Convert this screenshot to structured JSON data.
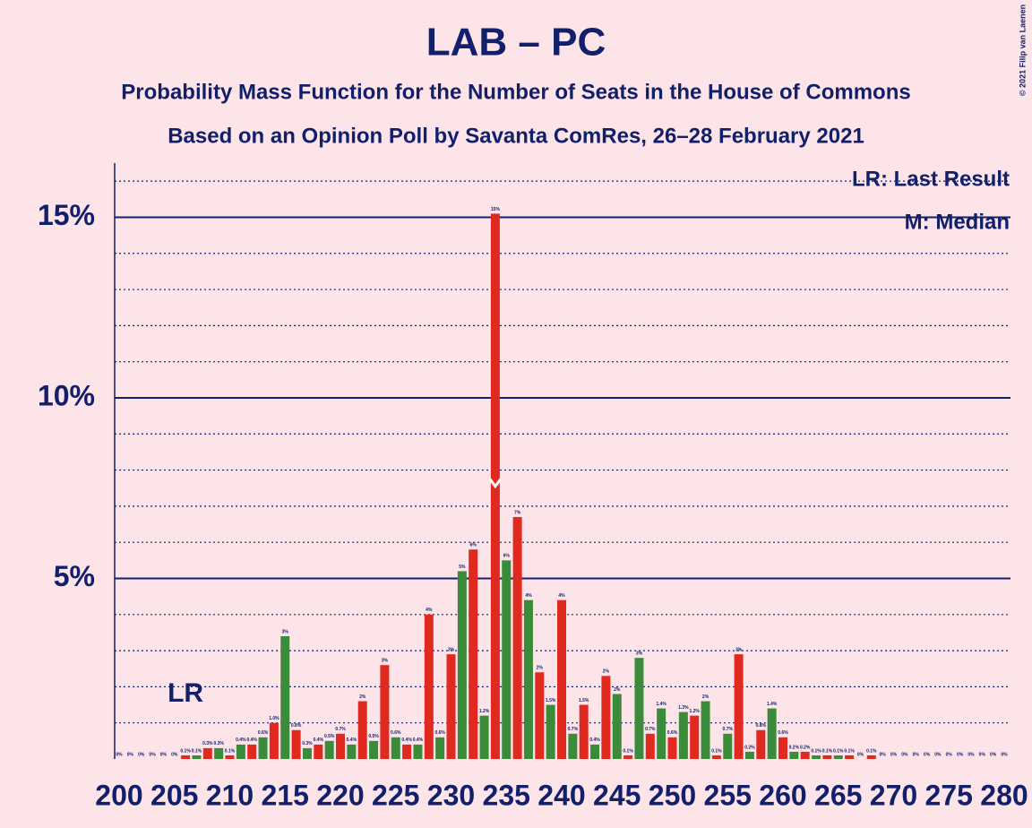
{
  "chart_data": {
    "type": "bar",
    "title": "LAB – PC",
    "subtitle": "Probability Mass Function for the Number of Seats in the House of Commons",
    "subtitle2": "Based on an Opinion Poll by Savanta ComRes, 26–28 February 2021",
    "copyright": "© 2021 Filip van Laenen",
    "legend": [
      "LR: Last Result",
      "M: Median"
    ],
    "last_result_label": "LR",
    "last_result": 206,
    "median": 234,
    "categories": [
      "200",
      null,
      null,
      null,
      null,
      "205",
      null,
      null,
      null,
      null,
      "210",
      null,
      null,
      null,
      null,
      "215",
      null,
      null,
      null,
      null,
      "220",
      null,
      null,
      null,
      null,
      "225",
      null,
      null,
      null,
      null,
      "230",
      null,
      null,
      null,
      null,
      "235",
      null,
      null,
      null,
      null,
      "240",
      null,
      null,
      null,
      null,
      "245",
      null,
      null,
      null,
      null,
      "250",
      null,
      null,
      null,
      null,
      "255",
      null,
      null,
      null,
      null,
      "260",
      null,
      null,
      null,
      null,
      "265",
      null,
      null,
      null,
      null,
      "270",
      null,
      null,
      null,
      null,
      "275",
      null,
      null,
      null,
      null,
      "280"
    ],
    "x": [
      200,
      201,
      202,
      203,
      204,
      205,
      206,
      207,
      208,
      209,
      210,
      211,
      212,
      213,
      214,
      215,
      216,
      217,
      218,
      219,
      220,
      221,
      222,
      223,
      224,
      225,
      226,
      227,
      228,
      229,
      230,
      231,
      232,
      233,
      234,
      235,
      236,
      237,
      238,
      239,
      240,
      241,
      242,
      243,
      244,
      245,
      246,
      247,
      248,
      249,
      250,
      251,
      252,
      253,
      254,
      255,
      256,
      257,
      258,
      259,
      260,
      261,
      262,
      263,
      264,
      265,
      266,
      267,
      268,
      269,
      270,
      271,
      272,
      273,
      274,
      275,
      276,
      277,
      278,
      279,
      280
    ],
    "values": [
      0,
      0,
      0,
      0,
      0,
      0,
      0.1,
      0.1,
      0.3,
      0.3,
      0.1,
      0.4,
      0.4,
      0.6,
      1.0,
      3.4,
      0.8,
      0.3,
      0.4,
      0.5,
      0.7,
      0.4,
      1.6,
      0.5,
      2.6,
      0.6,
      0.4,
      0.4,
      4.0,
      0.6,
      2.9,
      5.2,
      5.8,
      1.2,
      15.1,
      5.5,
      6.7,
      4.4,
      2.4,
      1.5,
      4.4,
      0.7,
      1.5,
      0.4,
      2.3,
      1.8,
      0.1,
      2.8,
      0.7,
      1.4,
      0.6,
      1.3,
      1.2,
      1.6,
      0.1,
      0.7,
      2.9,
      0.2,
      0.8,
      1.4,
      0.6,
      0.2,
      0.2,
      0.1,
      0.1,
      0.1,
      0.1,
      0,
      0.1,
      0,
      0,
      0,
      0,
      0,
      0,
      0,
      0,
      0,
      0,
      0,
      0
    ],
    "value_labels": [
      "0%",
      "0%",
      "0%",
      "0%",
      "0%",
      "0%",
      "0.1%",
      "0.1%",
      "0.3%",
      "0.3%",
      "0.1%",
      "0.4%",
      "0.4%",
      "0.6%",
      "1.0%",
      "3%",
      "0.8%",
      "0.3%",
      "0.4%",
      "0.5%",
      "0.7%",
      "0.4%",
      "2%",
      "0.5%",
      "3%",
      "0.6%",
      "0.4%",
      "0.4%",
      "4%",
      "0.6%",
      "3%",
      "5%",
      "6%",
      "1.2%",
      "15%",
      "6%",
      "7%",
      "4%",
      "2%",
      "1.5%",
      "4%",
      "0.7%",
      "1.5%",
      "0.4%",
      "2%",
      "2%",
      "0.1%",
      "3%",
      "0.7%",
      "1.4%",
      "0.6%",
      "1.3%",
      "1.2%",
      "2%",
      "0.1%",
      "0.7%",
      "3%",
      "0.2%",
      "0.8%",
      "1.4%",
      "0.6%",
      "0.2%",
      "0.2%",
      "0.1%",
      "0.1%",
      "0.1%",
      "0.1%",
      "0%",
      "0.1%",
      "0%",
      "0%",
      "0%",
      "0%",
      "0%",
      "0%",
      "0%",
      "0%",
      "0%",
      "0%",
      "0%",
      "0%"
    ],
    "bar_colors": [
      "#e0291f",
      "#3a8c3a"
    ],
    "ylim": [
      0,
      16.5
    ],
    "yticks": [
      {
        "value": 5,
        "label": "5%"
      },
      {
        "value": 10,
        "label": "10%"
      },
      {
        "value": 15,
        "label": "15%"
      }
    ],
    "minor_yticks": [
      1,
      2,
      3,
      4,
      6,
      7,
      8,
      9,
      11,
      12,
      13,
      14,
      16
    ],
    "grid": true
  }
}
